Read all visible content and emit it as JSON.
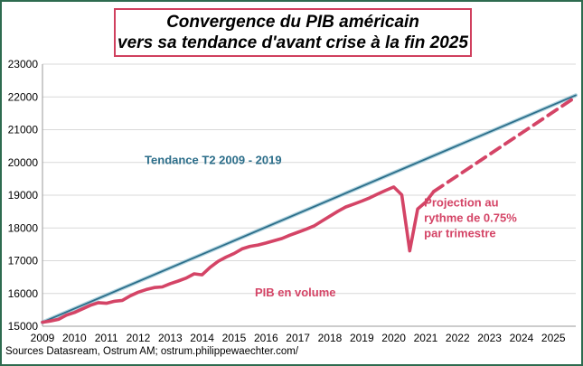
{
  "title": {
    "line1": "Convergence du PIB américain",
    "line2": "vers sa tendance d'avant crise à la fin 2025"
  },
  "source": "Sources Datasream, Ostrum AM; ostrum.philippewaechter.com/",
  "colors": {
    "trend": "#2c6e8a",
    "gdp": "#d44466",
    "grid": "#d9d9d9",
    "frame": "#2e6b4f"
  },
  "chart_data": {
    "type": "line",
    "title": "Convergence du PIB américain vers sa tendance d'avant crise à la fin 2025",
    "xlabel": "",
    "ylabel": "",
    "xlim": [
      2009,
      2025.7
    ],
    "ylim": [
      15000,
      23000
    ],
    "grid": "horizontal",
    "x_tick_labels": [
      "2009",
      "2010",
      "2011",
      "2012",
      "2013",
      "2014",
      "2015",
      "2016",
      "2017",
      "2018",
      "2019",
      "2020",
      "2021",
      "2022",
      "2023",
      "2024",
      "2025"
    ],
    "y_tick_labels": [
      "15000",
      "16000",
      "17000",
      "18000",
      "19000",
      "20000",
      "21000",
      "22000",
      "23000"
    ],
    "annotations": {
      "trend": "Tendance T2 2009  - 2019",
      "projection": [
        "Projection au",
        "rythme de 0.75%",
        "par trimestre"
      ],
      "gdp": "PIB en volume"
    },
    "series": [
      {
        "name": "Tendance T2 2009  - 2019",
        "style": "solid",
        "points": [
          [
            2009.0,
            15120
          ],
          [
            2025.7,
            22050
          ]
        ]
      },
      {
        "name": "PIB en volume",
        "style": "solid",
        "points": [
          [
            2009.0,
            15120
          ],
          [
            2009.25,
            15160
          ],
          [
            2009.5,
            15210
          ],
          [
            2009.75,
            15340
          ],
          [
            2010.0,
            15420
          ],
          [
            2010.25,
            15530
          ],
          [
            2010.5,
            15640
          ],
          [
            2010.75,
            15720
          ],
          [
            2011.0,
            15700
          ],
          [
            2011.25,
            15760
          ],
          [
            2011.5,
            15790
          ],
          [
            2011.75,
            15930
          ],
          [
            2012.0,
            16040
          ],
          [
            2012.25,
            16120
          ],
          [
            2012.5,
            16180
          ],
          [
            2012.75,
            16200
          ],
          [
            2013.0,
            16300
          ],
          [
            2013.25,
            16380
          ],
          [
            2013.5,
            16470
          ],
          [
            2013.75,
            16600
          ],
          [
            2014.0,
            16570
          ],
          [
            2014.25,
            16800
          ],
          [
            2014.5,
            16980
          ],
          [
            2014.75,
            17110
          ],
          [
            2015.0,
            17220
          ],
          [
            2015.25,
            17360
          ],
          [
            2015.5,
            17440
          ],
          [
            2015.75,
            17480
          ],
          [
            2016.0,
            17540
          ],
          [
            2016.25,
            17610
          ],
          [
            2016.5,
            17680
          ],
          [
            2016.75,
            17780
          ],
          [
            2017.0,
            17870
          ],
          [
            2017.25,
            17960
          ],
          [
            2017.5,
            18060
          ],
          [
            2017.75,
            18210
          ],
          [
            2018.0,
            18360
          ],
          [
            2018.25,
            18510
          ],
          [
            2018.5,
            18640
          ],
          [
            2018.75,
            18730
          ],
          [
            2019.0,
            18820
          ],
          [
            2019.25,
            18920
          ],
          [
            2019.5,
            19040
          ],
          [
            2019.75,
            19150
          ],
          [
            2020.0,
            19250
          ],
          [
            2020.25,
            19010
          ],
          [
            2020.5,
            17300
          ],
          [
            2020.75,
            18580
          ],
          [
            2021.0,
            18790
          ],
          [
            2021.25,
            19110
          ]
        ]
      },
      {
        "name": "Projection au rythme de 0.75% par trimestre",
        "style": "dashed",
        "points": [
          [
            2021.25,
            19110
          ],
          [
            2025.7,
            22000
          ]
        ]
      }
    ]
  }
}
